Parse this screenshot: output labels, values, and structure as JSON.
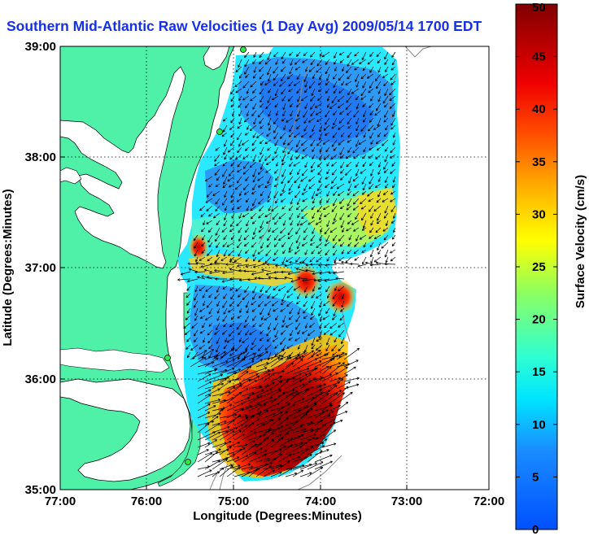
{
  "title": "Southern Mid-Atlantic Raw Velocities (1 Day Avg) 2009/05/14 1700 EDT",
  "map": {
    "xlabel": "Longitude (Degrees:Minutes)",
    "ylabel": "Latitude (Degrees:Minutes)",
    "lon_ticks": [
      "77:00",
      "76:00",
      "75:00",
      "74:00",
      "73:00",
      "72:00"
    ],
    "lat_ticks": [
      "39:00",
      "38:00",
      "37:00",
      "36:00",
      "35:00"
    ],
    "lon_range_deg_w": [
      77,
      72
    ],
    "lat_range_deg_n": [
      35,
      39
    ],
    "grid": "dotted",
    "land_color": "#4ff0a8",
    "ocean_color": "#ffffff"
  },
  "colorbar": {
    "label": "Surface Velocity (cm/s)",
    "min": 0,
    "max": 50,
    "ticks": [
      "0",
      "5",
      "10",
      "15",
      "20",
      "25",
      "30",
      "35",
      "40",
      "45",
      "50"
    ],
    "colormap": "jet"
  },
  "field_features": {
    "low_speed_zone": "central shelf off Delmarva and Virginia, about 5-10 cm/s",
    "high_speed_zone": "south of Cape Hatteras, Gulf Stream, above 45 cm/s",
    "jets": "Chesapeake Bay mouth near 37:00 N, about 30-40 cm/s"
  },
  "stations": [
    "delaware-station",
    "assateague-station",
    "virginia-station",
    "hatteras-station",
    "carolina-station"
  ]
}
